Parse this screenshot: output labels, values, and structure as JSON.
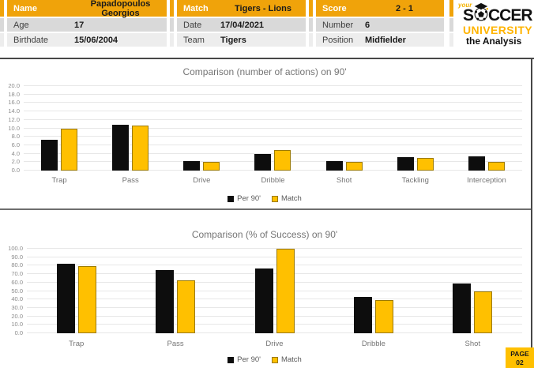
{
  "header": {
    "tables": [
      {
        "header": {
          "label": "Name",
          "value": "Papadopoulos Georgios"
        },
        "rows": [
          {
            "label": "Age",
            "value": "17"
          },
          {
            "label": "Birthdate",
            "value": "15/06/2004"
          }
        ]
      },
      {
        "header": {
          "label": "Match",
          "value": "Tigers - Lions"
        },
        "rows": [
          {
            "label": "Date",
            "value": "17/04/2021"
          },
          {
            "label": "Team",
            "value": "Tigers"
          }
        ]
      },
      {
        "header": {
          "label": "Score",
          "value": "2 - 1"
        },
        "rows": [
          {
            "label": "Number",
            "value": "6"
          },
          {
            "label": "Position",
            "value": "Midfielder"
          }
        ]
      }
    ],
    "logo": {
      "small_word": "your",
      "word1_pre": "S",
      "word1_post": "CCER",
      "word2": "UNIVERSITY",
      "word3": "the Analysis"
    }
  },
  "chart_data": [
    {
      "type": "bar",
      "title": "Comparison (number of actions) on 90'",
      "categories": [
        "Trap",
        "Pass",
        "Drive",
        "Dribble",
        "Shot",
        "Tackling",
        "Interception"
      ],
      "series": [
        {
          "name": "Per 90'",
          "color": "#0D0D0D",
          "border": null,
          "values": [
            7.2,
            10.9,
            2.2,
            3.9,
            2.3,
            3.1,
            3.3
          ]
        },
        {
          "name": "Match",
          "color": "#FFC000",
          "border": "#9C7A00",
          "values": [
            9.9,
            10.6,
            2.0,
            4.9,
            2.0,
            3.0,
            2.0
          ]
        }
      ],
      "xlabel": "",
      "ylabel": "",
      "ylim": [
        0,
        20
      ],
      "ytick_step": 2,
      "grid": true,
      "legend_position": "bottom"
    },
    {
      "type": "bar",
      "title": "Comparison (% of Success) on 90'",
      "categories": [
        "Trap",
        "Pass",
        "Drive",
        "Dribble",
        "Shot"
      ],
      "series": [
        {
          "name": "Per 90'",
          "color": "#0D0D0D",
          "border": null,
          "values": [
            82.4,
            74.6,
            77.1,
            42.9,
            58.8
          ]
        },
        {
          "name": "Match",
          "color": "#FFC000",
          "border": "#9C7A00",
          "values": [
            79.2,
            62.5,
            100.0,
            39.4,
            49.5
          ]
        }
      ],
      "xlabel": "",
      "ylabel": "",
      "ylim": [
        0,
        100
      ],
      "ytick_step": 10,
      "grid": true,
      "legend_position": "bottom"
    }
  ],
  "page_badge": {
    "line1": "PAGE",
    "line2": "02"
  },
  "colors": {
    "accent_orange": "#F0A30A",
    "accent_gold": "#FFC000",
    "bar_black": "#0D0D0D",
    "bar_gold_border": "#9C7A00",
    "row_gray": "#D9D9D9",
    "row_light": "#EDEDED",
    "frame_dark": "#474747",
    "chart_text_gray": "#757575"
  }
}
